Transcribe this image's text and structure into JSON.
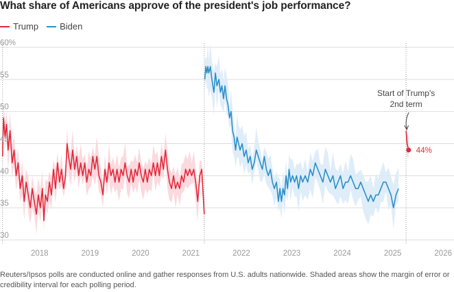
{
  "header": {
    "title": "What share of Americans approve of the president's job performance?"
  },
  "legend": {
    "items": [
      {
        "label": "Trump",
        "color": "#e2283a"
      },
      {
        "label": "Biden",
        "color": "#2a8fc9"
      }
    ]
  },
  "footer": {
    "note": "Reuters/Ipsos polls are conducted online and gather responses from U.S. adults nationwide. Shaded areas show the margin of error or credibility interval for each polling period."
  },
  "chart_data": {
    "type": "line",
    "title": "What share of Americans approve of the president's job performance?",
    "xlabel": "",
    "ylabel": "",
    "xlim": [
      2017.0,
      2026.0
    ],
    "ylim": [
      30,
      60
    ],
    "y_unit": "%",
    "yticks": [
      {
        "value": 30,
        "label": "30"
      },
      {
        "value": 35,
        "label": "35"
      },
      {
        "value": 40,
        "label": "40"
      },
      {
        "value": 45,
        "label": "45"
      },
      {
        "value": 50,
        "label": "50"
      },
      {
        "value": 55,
        "label": "55"
      },
      {
        "value": 60,
        "label": "60%"
      }
    ],
    "xticks": [
      {
        "value": 2018,
        "label": "2018"
      },
      {
        "value": 2019,
        "label": "2019"
      },
      {
        "value": 2020,
        "label": "2020"
      },
      {
        "value": 2021,
        "label": "2021"
      },
      {
        "value": 2022,
        "label": "2022"
      },
      {
        "value": 2023,
        "label": "2023"
      },
      {
        "value": 2024,
        "label": "2024"
      },
      {
        "value": 2025,
        "label": "2025"
      },
      {
        "value": 2026,
        "label": "2026"
      }
    ],
    "reference_lines": [
      2017.05,
      2021.05,
      2025.05
    ],
    "grid": "horizontal",
    "legend_position": "top-left",
    "series": [
      {
        "name": "Trump",
        "color": "#e2283a",
        "band_color": "#fbd5da",
        "band_halfwidth": 2.2,
        "points": [
          [
            2017.05,
            43
          ],
          [
            2017.07,
            49
          ],
          [
            2017.1,
            46
          ],
          [
            2017.13,
            48
          ],
          [
            2017.16,
            44
          ],
          [
            2017.2,
            47
          ],
          [
            2017.24,
            42
          ],
          [
            2017.28,
            44
          ],
          [
            2017.32,
            40
          ],
          [
            2017.36,
            42
          ],
          [
            2017.4,
            38
          ],
          [
            2017.44,
            40
          ],
          [
            2017.48,
            36
          ],
          [
            2017.52,
            39
          ],
          [
            2017.56,
            37
          ],
          [
            2017.6,
            35
          ],
          [
            2017.64,
            38
          ],
          [
            2017.68,
            36
          ],
          [
            2017.72,
            34
          ],
          [
            2017.76,
            37
          ],
          [
            2017.8,
            35
          ],
          [
            2017.84,
            38
          ],
          [
            2017.87,
            33
          ],
          [
            2017.9,
            37
          ],
          [
            2017.94,
            36
          ],
          [
            2017.98,
            39
          ],
          [
            2018.02,
            37
          ],
          [
            2018.06,
            41
          ],
          [
            2018.1,
            38
          ],
          [
            2018.14,
            42
          ],
          [
            2018.18,
            39
          ],
          [
            2018.22,
            41
          ],
          [
            2018.26,
            38
          ],
          [
            2018.3,
            40
          ],
          [
            2018.33,
            45
          ],
          [
            2018.36,
            43
          ],
          [
            2018.4,
            41
          ],
          [
            2018.44,
            44
          ],
          [
            2018.48,
            41
          ],
          [
            2018.52,
            43
          ],
          [
            2018.56,
            40
          ],
          [
            2018.6,
            42
          ],
          [
            2018.64,
            40
          ],
          [
            2018.68,
            42
          ],
          [
            2018.72,
            39
          ],
          [
            2018.76,
            41
          ],
          [
            2018.8,
            40
          ],
          [
            2018.84,
            43
          ],
          [
            2018.88,
            41
          ],
          [
            2018.92,
            43
          ],
          [
            2018.96,
            40
          ],
          [
            2019.0,
            39
          ],
          [
            2019.04,
            37
          ],
          [
            2019.08,
            41
          ],
          [
            2019.12,
            39
          ],
          [
            2019.16,
            42
          ],
          [
            2019.2,
            40
          ],
          [
            2019.24,
            41
          ],
          [
            2019.28,
            39
          ],
          [
            2019.32,
            41
          ],
          [
            2019.36,
            39
          ],
          [
            2019.4,
            41
          ],
          [
            2019.44,
            40
          ],
          [
            2019.48,
            42
          ],
          [
            2019.52,
            40
          ],
          [
            2019.56,
            39
          ],
          [
            2019.6,
            41
          ],
          [
            2019.64,
            39
          ],
          [
            2019.68,
            41
          ],
          [
            2019.72,
            40
          ],
          [
            2019.76,
            42
          ],
          [
            2019.8,
            40
          ],
          [
            2019.84,
            39
          ],
          [
            2019.88,
            41
          ],
          [
            2019.92,
            39
          ],
          [
            2019.96,
            41
          ],
          [
            2020.0,
            40
          ],
          [
            2020.04,
            42
          ],
          [
            2020.08,
            40
          ],
          [
            2020.12,
            42
          ],
          [
            2020.16,
            40
          ],
          [
            2020.2,
            43
          ],
          [
            2020.24,
            41
          ],
          [
            2020.28,
            44
          ],
          [
            2020.32,
            41
          ],
          [
            2020.36,
            39
          ],
          [
            2020.4,
            38
          ],
          [
            2020.44,
            40
          ],
          [
            2020.48,
            38
          ],
          [
            2020.52,
            39
          ],
          [
            2020.56,
            38
          ],
          [
            2020.6,
            40
          ],
          [
            2020.64,
            39
          ],
          [
            2020.68,
            41
          ],
          [
            2020.72,
            40
          ],
          [
            2020.76,
            41
          ],
          [
            2020.8,
            40
          ],
          [
            2020.84,
            41
          ],
          [
            2020.88,
            39
          ],
          [
            2020.92,
            36
          ],
          [
            2020.96,
            40
          ],
          [
            2021.0,
            41
          ],
          [
            2021.02,
            38
          ],
          [
            2021.05,
            34
          ]
        ]
      },
      {
        "name": "Biden",
        "color": "#2a8fc9",
        "band_color": "#dcebf8",
        "band_halfwidth": 2.6,
        "points": [
          [
            2021.06,
            55
          ],
          [
            2021.08,
            57
          ],
          [
            2021.1,
            56
          ],
          [
            2021.12,
            57
          ],
          [
            2021.14,
            56
          ],
          [
            2021.17,
            57
          ],
          [
            2021.2,
            55
          ],
          [
            2021.24,
            53
          ],
          [
            2021.27,
            56
          ],
          [
            2021.3,
            54
          ],
          [
            2021.34,
            55
          ],
          [
            2021.37,
            53
          ],
          [
            2021.4,
            54
          ],
          [
            2021.43,
            52
          ],
          [
            2021.46,
            54
          ],
          [
            2021.49,
            52
          ],
          [
            2021.52,
            51
          ],
          [
            2021.55,
            49
          ],
          [
            2021.58,
            50
          ],
          [
            2021.61,
            47
          ],
          [
            2021.64,
            46
          ],
          [
            2021.67,
            44
          ],
          [
            2021.7,
            46
          ],
          [
            2021.73,
            45
          ],
          [
            2021.76,
            44
          ],
          [
            2021.8,
            45
          ],
          [
            2021.84,
            43
          ],
          [
            2021.88,
            44
          ],
          [
            2021.92,
            42
          ],
          [
            2021.96,
            43
          ],
          [
            2022.0,
            41
          ],
          [
            2022.04,
            42
          ],
          [
            2022.08,
            44
          ],
          [
            2022.12,
            43
          ],
          [
            2022.16,
            42
          ],
          [
            2022.2,
            41
          ],
          [
            2022.24,
            43
          ],
          [
            2022.28,
            41
          ],
          [
            2022.32,
            40
          ],
          [
            2022.36,
            41
          ],
          [
            2022.4,
            39
          ],
          [
            2022.44,
            38
          ],
          [
            2022.48,
            39
          ],
          [
            2022.52,
            36
          ],
          [
            2022.55,
            38
          ],
          [
            2022.58,
            36
          ],
          [
            2022.61,
            38
          ],
          [
            2022.64,
            37
          ],
          [
            2022.67,
            40
          ],
          [
            2022.7,
            38
          ],
          [
            2022.73,
            41
          ],
          [
            2022.76,
            39
          ],
          [
            2022.8,
            40
          ],
          [
            2022.84,
            39
          ],
          [
            2022.88,
            40
          ],
          [
            2022.92,
            38
          ],
          [
            2022.96,
            40
          ],
          [
            2023.0,
            39
          ],
          [
            2023.05,
            40
          ],
          [
            2023.1,
            39
          ],
          [
            2023.15,
            41
          ],
          [
            2023.2,
            40
          ],
          [
            2023.25,
            42
          ],
          [
            2023.3,
            41
          ],
          [
            2023.35,
            40
          ],
          [
            2023.4,
            39
          ],
          [
            2023.45,
            41
          ],
          [
            2023.5,
            40
          ],
          [
            2023.55,
            39
          ],
          [
            2023.6,
            40
          ],
          [
            2023.65,
            38
          ],
          [
            2023.7,
            39
          ],
          [
            2023.75,
            40
          ],
          [
            2023.8,
            38
          ],
          [
            2023.85,
            39
          ],
          [
            2023.9,
            39
          ],
          [
            2023.95,
            40
          ],
          [
            2024.0,
            39
          ],
          [
            2024.05,
            38
          ],
          [
            2024.1,
            38
          ],
          [
            2024.15,
            39
          ],
          [
            2024.2,
            38
          ],
          [
            2024.25,
            37
          ],
          [
            2024.3,
            36
          ],
          [
            2024.35,
            37
          ],
          [
            2024.4,
            36
          ],
          [
            2024.45,
            37
          ],
          [
            2024.5,
            37
          ],
          [
            2024.55,
            38
          ],
          [
            2024.6,
            39
          ],
          [
            2024.65,
            39
          ],
          [
            2024.7,
            38
          ],
          [
            2024.75,
            37
          ],
          [
            2024.8,
            35
          ],
          [
            2024.85,
            37
          ],
          [
            2024.9,
            38
          ]
        ]
      },
      {
        "name": "Trump",
        "color": "#e2283a",
        "band_color": "#fbd5da",
        "band_halfwidth": 1.5,
        "points": [
          [
            2025.05,
            47
          ],
          [
            2025.07,
            45
          ],
          [
            2025.1,
            44
          ]
        ]
      }
    ],
    "annotations": [
      {
        "label": "Start of Trump's",
        "x": 2025.05
      },
      {
        "label": "2nd term",
        "x": 2025.05
      },
      {
        "label": "44%",
        "x": 2025.1,
        "y": 44
      }
    ]
  }
}
